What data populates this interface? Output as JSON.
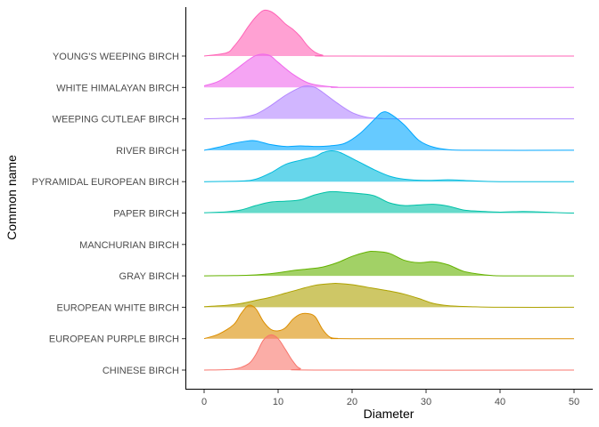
{
  "chart_data": {
    "type": "ridgeline",
    "title": "",
    "xlabel": "Diameter",
    "ylabel": "Common name",
    "xlim": [
      0,
      50
    ],
    "x_ticks": [
      0,
      10,
      20,
      30,
      40,
      50
    ],
    "x_tick_labels": [
      "0",
      "10",
      "20",
      "30",
      "40",
      "50"
    ],
    "grid": false,
    "legend": "none",
    "density_scale_note": "density curves; relative heights in units of row spacing",
    "series": [
      {
        "name": "CHINESE BIRCH",
        "color": "#F8766D",
        "points": [
          [
            0,
            0
          ],
          [
            4,
            0.03
          ],
          [
            6,
            0.2
          ],
          [
            7,
            0.5
          ],
          [
            8,
            0.95
          ],
          [
            9,
            1.12
          ],
          [
            10,
            1.0
          ],
          [
            11,
            0.65
          ],
          [
            12,
            0.28
          ],
          [
            13,
            0.05
          ],
          [
            15,
            0
          ],
          [
            50,
            0
          ]
        ]
      },
      {
        "name": "EUROPEAN PURPLE BIRCH",
        "color": "#DB8E00",
        "points": [
          [
            0,
            0
          ],
          [
            2,
            0.15
          ],
          [
            4,
            0.45
          ],
          [
            5,
            0.8
          ],
          [
            6,
            1.06
          ],
          [
            7,
            0.95
          ],
          [
            8,
            0.55
          ],
          [
            9,
            0.3
          ],
          [
            10,
            0.25
          ],
          [
            11,
            0.35
          ],
          [
            12,
            0.62
          ],
          [
            13,
            0.78
          ],
          [
            14,
            0.8
          ],
          [
            15,
            0.7
          ],
          [
            16,
            0.3
          ],
          [
            17,
            0.05
          ],
          [
            18,
            0.01
          ],
          [
            20,
            0
          ],
          [
            50,
            0
          ]
        ]
      },
      {
        "name": "EUROPEAN WHITE BIRCH",
        "color": "#AEA200",
        "points": [
          [
            0,
            0.02
          ],
          [
            3,
            0.06
          ],
          [
            5,
            0.12
          ],
          [
            7,
            0.22
          ],
          [
            9,
            0.32
          ],
          [
            11,
            0.45
          ],
          [
            13,
            0.58
          ],
          [
            15,
            0.7
          ],
          [
            17,
            0.75
          ],
          [
            18,
            0.76
          ],
          [
            20,
            0.72
          ],
          [
            22,
            0.64
          ],
          [
            25,
            0.52
          ],
          [
            27,
            0.42
          ],
          [
            29,
            0.28
          ],
          [
            31,
            0.12
          ],
          [
            33,
            0.05
          ],
          [
            36,
            0.02
          ],
          [
            40,
            0
          ],
          [
            50,
            0
          ]
        ]
      },
      {
        "name": "GRAY BIRCH",
        "color": "#64B200",
        "points": [
          [
            0,
            0
          ],
          [
            4,
            0.01
          ],
          [
            6,
            0.02
          ],
          [
            8,
            0.05
          ],
          [
            10,
            0.1
          ],
          [
            12,
            0.17
          ],
          [
            14,
            0.22
          ],
          [
            16,
            0.28
          ],
          [
            18,
            0.42
          ],
          [
            20,
            0.62
          ],
          [
            22,
            0.76
          ],
          [
            23,
            0.78
          ],
          [
            25,
            0.72
          ],
          [
            27,
            0.5
          ],
          [
            29,
            0.42
          ],
          [
            31,
            0.45
          ],
          [
            33,
            0.35
          ],
          [
            35,
            0.15
          ],
          [
            37,
            0.06
          ],
          [
            39,
            0.01
          ],
          [
            41,
            0
          ],
          [
            50,
            0
          ]
        ]
      },
      {
        "name": "MANCHURIAN BIRCH",
        "color": "#00BD5C",
        "points": []
      },
      {
        "name": "PAPER BIRCH",
        "color": "#00C1A7",
        "points": [
          [
            0,
            0.01
          ],
          [
            3,
            0.04
          ],
          [
            5,
            0.1
          ],
          [
            7,
            0.24
          ],
          [
            9,
            0.35
          ],
          [
            11,
            0.38
          ],
          [
            13,
            0.42
          ],
          [
            15,
            0.58
          ],
          [
            17,
            0.68
          ],
          [
            19,
            0.66
          ],
          [
            21,
            0.62
          ],
          [
            23,
            0.55
          ],
          [
            25,
            0.33
          ],
          [
            27,
            0.24
          ],
          [
            29,
            0.26
          ],
          [
            31,
            0.28
          ],
          [
            33,
            0.22
          ],
          [
            35,
            0.1
          ],
          [
            37,
            0.06
          ],
          [
            40,
            0.03
          ],
          [
            43,
            0.05
          ],
          [
            45,
            0.04
          ],
          [
            48,
            0.01
          ],
          [
            50,
            0
          ]
        ]
      },
      {
        "name": "PYRAMIDAL EUROPEAN BIRCH",
        "color": "#00BADE",
        "points": [
          [
            0,
            0
          ],
          [
            5,
            0.02
          ],
          [
            7,
            0.08
          ],
          [
            9,
            0.28
          ],
          [
            11,
            0.55
          ],
          [
            13,
            0.68
          ],
          [
            15,
            0.8
          ],
          [
            16,
            0.92
          ],
          [
            17,
            0.98
          ],
          [
            18,
            0.96
          ],
          [
            19,
            0.86
          ],
          [
            21,
            0.62
          ],
          [
            23,
            0.38
          ],
          [
            25,
            0.18
          ],
          [
            27,
            0.08
          ],
          [
            30,
            0.04
          ],
          [
            33,
            0.06
          ],
          [
            36,
            0.03
          ],
          [
            40,
            0
          ],
          [
            50,
            0
          ]
        ]
      },
      {
        "name": "RIVER BIRCH",
        "color": "#00A6FF",
        "points": [
          [
            0,
            0
          ],
          [
            2,
            0.1
          ],
          [
            4,
            0.22
          ],
          [
            6,
            0.3
          ],
          [
            7,
            0.3
          ],
          [
            9,
            0.18
          ],
          [
            11,
            0.12
          ],
          [
            13,
            0.14
          ],
          [
            15,
            0.12
          ],
          [
            17,
            0.14
          ],
          [
            19,
            0.22
          ],
          [
            21,
            0.52
          ],
          [
            23,
            0.98
          ],
          [
            24,
            1.2
          ],
          [
            25,
            1.18
          ],
          [
            27,
            0.82
          ],
          [
            29,
            0.32
          ],
          [
            31,
            0.1
          ],
          [
            33,
            0.02
          ],
          [
            36,
            0
          ],
          [
            50,
            0
          ]
        ]
      },
      {
        "name": "WEEPING CUTLEAF BIRCH",
        "color": "#B385FF",
        "points": [
          [
            0,
            0
          ],
          [
            3,
            0.02
          ],
          [
            5,
            0.05
          ],
          [
            7,
            0.15
          ],
          [
            9,
            0.42
          ],
          [
            11,
            0.75
          ],
          [
            13,
            1.0
          ],
          [
            14,
            1.05
          ],
          [
            15,
            1.0
          ],
          [
            16,
            0.85
          ],
          [
            18,
            0.5
          ],
          [
            20,
            0.2
          ],
          [
            22,
            0.05
          ],
          [
            24,
            0.01
          ],
          [
            26,
            0
          ],
          [
            50,
            0
          ]
        ]
      },
      {
        "name": "WHITE HIMALAYAN BIRCH",
        "color": "#EF67EB",
        "points": [
          [
            0,
            0.05
          ],
          [
            2,
            0.2
          ],
          [
            4,
            0.52
          ],
          [
            6,
            0.88
          ],
          [
            7,
            1.02
          ],
          [
            8,
            1.06
          ],
          [
            9,
            1.0
          ],
          [
            10,
            0.8
          ],
          [
            12,
            0.42
          ],
          [
            14,
            0.15
          ],
          [
            16,
            0.05
          ],
          [
            18,
            0.01
          ],
          [
            20,
            0
          ],
          [
            50,
            0
          ]
        ]
      },
      {
        "name": "YOUNG'S WEEPING BIRCH",
        "color": "#FF63B6",
        "points": [
          [
            0,
            0
          ],
          [
            3,
            0.1
          ],
          [
            4,
            0.3
          ],
          [
            5,
            0.6
          ],
          [
            6,
            0.95
          ],
          [
            7,
            1.25
          ],
          [
            8,
            1.45
          ],
          [
            9,
            1.42
          ],
          [
            10,
            1.25
          ],
          [
            11,
            1.02
          ],
          [
            12,
            0.85
          ],
          [
            13,
            0.62
          ],
          [
            14,
            0.32
          ],
          [
            15,
            0.12
          ],
          [
            16,
            0.03
          ],
          [
            18,
            0
          ],
          [
            50,
            0
          ]
        ]
      }
    ]
  }
}
